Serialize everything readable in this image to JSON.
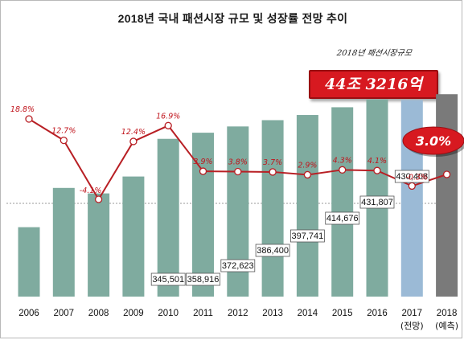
{
  "title": "2018년 국내 패션시장 규모 및 성장률 전망 추이",
  "note": "2018년 패션시장규모",
  "total_callout": "44조 3216억",
  "growth_callout": "3.0%",
  "colors": {
    "bar_actual": "#7fab9f",
    "bar_forecast_2017": "#9bbad6",
    "bar_forecast_2018": "#7a7a7a",
    "line": "#b81f24",
    "callout_red": "#d71920"
  },
  "chart_data": {
    "type": "bar",
    "categories": [
      "2006",
      "2007",
      "2008",
      "2009",
      "2010",
      "2011",
      "2012",
      "2013",
      "2014",
      "2015",
      "2016",
      "2017",
      "2018"
    ],
    "category_sublabels": [
      "",
      "",
      "",
      "",
      "",
      "",
      "",
      "",
      "",
      "",
      "",
      "(전망)",
      "(예측)"
    ],
    "series": [
      {
        "values": [
          null,
          null,
          null,
          null,
          345501,
          358916,
          372623,
          386400,
          397741,
          414676,
          431807,
          430408,
          443216
        ],
        "estimated_heights": [
          152000,
          238000,
          226000,
          263000,
          345501,
          358916,
          372623,
          386400,
          397741,
          414676,
          431807,
          430408,
          443216
        ],
        "value_labels": [
          "",
          "",
          "",
          "",
          "345,501",
          "358,916",
          "372,623",
          "386,400",
          "397,741",
          "414,676",
          "431,807",
          "430,408",
          ""
        ]
      },
      {
        "type": "line",
        "values": [
          18.8,
          12.7,
          -4.1,
          12.4,
          16.9,
          3.9,
          3.8,
          3.7,
          2.9,
          4.3,
          4.1,
          -0.3,
          3.0
        ],
        "value_labels": [
          "18.8%",
          "12.7%",
          "-4.1%",
          "12.4%",
          "16.9%",
          "3.9%",
          "3.8%",
          "3.7%",
          "2.9%",
          "4.3%",
          "4.1%",
          "-0.3%",
          ""
        ]
      }
    ],
    "ylim": [
      0,
      470000
    ],
    "grid": false
  }
}
